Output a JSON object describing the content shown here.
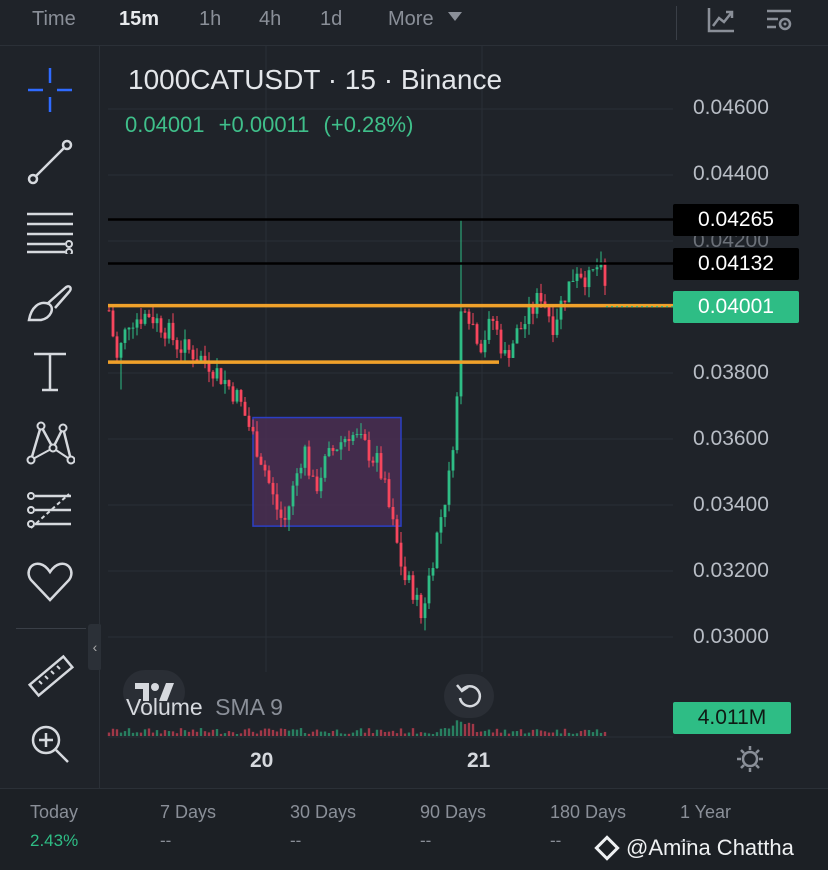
{
  "timeframes": {
    "items": [
      {
        "label": "Time",
        "active": false
      },
      {
        "label": "15m",
        "active": true
      },
      {
        "label": "1h",
        "active": false
      },
      {
        "label": "4h",
        "active": false
      },
      {
        "label": "1d",
        "active": false
      },
      {
        "label": "More",
        "active": false
      }
    ]
  },
  "toolbar_icons": [
    "indicator-chart-icon",
    "chart-settings-icon"
  ],
  "left_tools": [
    "crosshair-icon",
    "trend-line-icon",
    "horizontal-lines-icon",
    "brush-icon",
    "text-icon",
    "pattern-icon",
    "fib-retracement-icon",
    "heart-icon",
    "ruler-icon",
    "zoom-in-icon"
  ],
  "legend": {
    "title": "1000CATUSDT · 15 · Binance",
    "last": "0.04001",
    "change": "+0.00011",
    "change_pct": "(+0.28%)"
  },
  "price_tags": {
    "line1": "0.04265",
    "line2": "0.04132",
    "current": "0.04001"
  },
  "colors": {
    "up": "#2ebd85",
    "down": "#f6465d",
    "support_line": "#f0a12a",
    "resistance_line": "#000000",
    "box_border": "#2b3fc4",
    "box_fill": "#4a2e52"
  },
  "chart_data": {
    "type": "candlestick",
    "symbol": "1000CATUSDT",
    "interval": "15",
    "exchange": "Binance",
    "y_ticks": [
      "0.04600",
      "0.04400",
      "0.04200",
      "0.03800",
      "0.03600",
      "0.03400",
      "0.03200",
      "0.03000"
    ],
    "x_ticks": [
      "20",
      "21"
    ],
    "ylim": [
      0.0289,
      0.0468
    ],
    "horizontal_lines": [
      {
        "price": 0.04265,
        "color": "black"
      },
      {
        "price": 0.04132,
        "color": "black"
      },
      {
        "price": 0.04004,
        "color": "orange"
      },
      {
        "price": 0.03833,
        "color": "orange"
      }
    ],
    "rectangle": {
      "price_top": 0.03665,
      "price_bottom": 0.03336
    },
    "last_price": 0.04001,
    "close_path": [
      [
        0,
        0.0399
      ],
      [
        8,
        0.0384
      ],
      [
        20,
        0.0396
      ],
      [
        40,
        0.0398
      ],
      [
        55,
        0.0394
      ],
      [
        70,
        0.0388
      ],
      [
        85,
        0.0386
      ],
      [
        100,
        0.0383
      ],
      [
        115,
        0.0378
      ],
      [
        130,
        0.0372
      ],
      [
        140,
        0.0364
      ],
      [
        150,
        0.0356
      ],
      [
        155,
        0.0352
      ],
      [
        165,
        0.0341
      ],
      [
        175,
        0.0334
      ],
      [
        185,
        0.0346
      ],
      [
        195,
        0.0358
      ],
      [
        205,
        0.0344
      ],
      [
        215,
        0.0352
      ],
      [
        225,
        0.0357
      ],
      [
        240,
        0.0362
      ],
      [
        255,
        0.0358
      ],
      [
        270,
        0.0352
      ],
      [
        275,
        0.0346
      ],
      [
        285,
        0.0332
      ],
      [
        295,
        0.0318
      ],
      [
        305,
        0.0314
      ],
      [
        312,
        0.0306
      ],
      [
        320,
        0.0318
      ],
      [
        330,
        0.0334
      ],
      [
        340,
        0.0348
      ],
      [
        348,
        0.0372
      ],
      [
        352,
        0.0398
      ],
      [
        356,
        0.0402
      ],
      [
        362,
        0.0396
      ],
      [
        372,
        0.0389
      ],
      [
        384,
        0.0396
      ],
      [
        396,
        0.0385
      ],
      [
        408,
        0.0392
      ],
      [
        420,
        0.0397
      ],
      [
        432,
        0.0404
      ],
      [
        444,
        0.0395
      ],
      [
        456,
        0.0404
      ],
      [
        468,
        0.0412
      ],
      [
        480,
        0.0408
      ],
      [
        490,
        0.0413
      ],
      [
        500,
        0.04
      ]
    ],
    "volume": {
      "label": "Volume",
      "indicator": "SMA 9",
      "value": "4.011M"
    }
  },
  "reset_icon": "reset-icon",
  "performance": [
    {
      "label": "Today",
      "value": "2.43%",
      "positive": true
    },
    {
      "label": "7 Days",
      "value": "--",
      "positive": false
    },
    {
      "label": "30 Days",
      "value": "--",
      "positive": false
    },
    {
      "label": "90 Days",
      "value": "--",
      "positive": false
    },
    {
      "label": "180 Days",
      "value": "--",
      "positive": false
    },
    {
      "label": "1 Year",
      "value": "--",
      "positive": false
    }
  ],
  "watermark": "@Amina Chattha"
}
